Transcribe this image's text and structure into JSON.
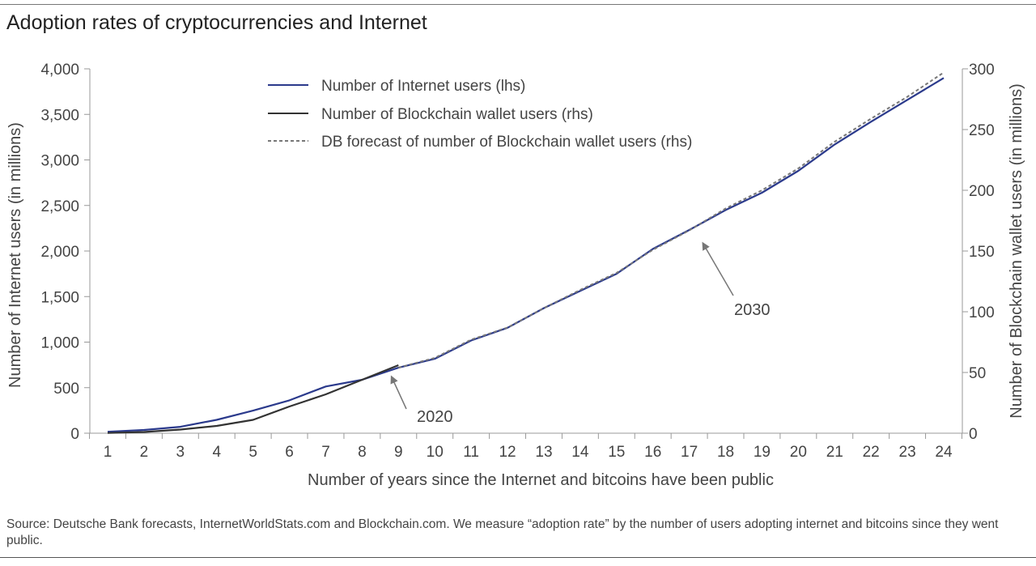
{
  "page": {
    "title": "Adoption rates of cryptocurrencies and Internet",
    "source": "Source: Deutsche Bank forecasts, InternetWorldStats.com and Blockchain.com. We measure “adoption rate” by the number of users adopting internet and bitcoins since they went public."
  },
  "chart_data": {
    "type": "line",
    "title": "Adoption rates of cryptocurrencies and Internet",
    "xlabel": "Number of years since the Internet and bitcoins have been public",
    "ylabel_left": "Number of Internet users (in millions)",
    "ylabel_right": "Number of Blockchain wallet users (in millions)",
    "x": [
      1,
      2,
      3,
      4,
      5,
      6,
      7,
      8,
      9,
      10,
      11,
      12,
      13,
      14,
      15,
      16,
      17,
      18,
      19,
      20,
      21,
      22,
      23,
      24
    ],
    "xlim": [
      1,
      24
    ],
    "ylim_left": [
      0,
      4000
    ],
    "ylim_right": [
      0,
      300
    ],
    "yticks_left": [
      "0",
      "500",
      "1,000",
      "1,500",
      "2,000",
      "2,500",
      "3,000",
      "3,500",
      "4,000"
    ],
    "yticks_right": [
      "0",
      "50",
      "100",
      "150",
      "200",
      "250",
      "300"
    ],
    "grid": false,
    "legend_position": "top-center",
    "series": [
      {
        "name": "Number of Internet users (lhs)",
        "axis": "left",
        "color": "#2b3a8c",
        "style": "solid",
        "x": [
          1,
          2,
          3,
          4,
          5,
          6,
          7,
          8,
          9,
          10,
          11,
          12,
          13,
          14,
          15,
          16,
          17,
          18,
          19,
          20,
          21,
          22,
          23,
          24
        ],
        "values": [
          16,
          36,
          70,
          147,
          248,
          361,
          513,
          587,
          719,
          817,
          1018,
          1157,
          1373,
          1562,
          1750,
          2023,
          2231,
          2450,
          2640,
          2880,
          3170,
          3420,
          3660,
          3900
        ]
      },
      {
        "name": "Number of Blockchain wallet users (rhs)",
        "axis": "right",
        "color": "#333333",
        "style": "solid",
        "x": [
          1,
          2,
          3,
          4,
          5,
          6,
          7,
          8,
          9
        ],
        "values": [
          0.2,
          1,
          3,
          6,
          11,
          22,
          32,
          44,
          56
        ]
      },
      {
        "name": "DB forecast of number of Blockchain wallet users (rhs)",
        "axis": "right",
        "color": "#777777",
        "style": "dashed",
        "x": [
          9,
          10,
          11,
          12,
          13,
          14,
          15,
          16,
          17,
          18,
          19,
          20,
          21,
          22,
          23,
          24
        ],
        "values": [
          54,
          62,
          77,
          87,
          103,
          118,
          132,
          151,
          167,
          185,
          200,
          218,
          240,
          259,
          277,
          297
        ]
      }
    ],
    "annotations": [
      {
        "text": "2020",
        "x": 9
      },
      {
        "text": "2030",
        "x": 17
      }
    ]
  }
}
